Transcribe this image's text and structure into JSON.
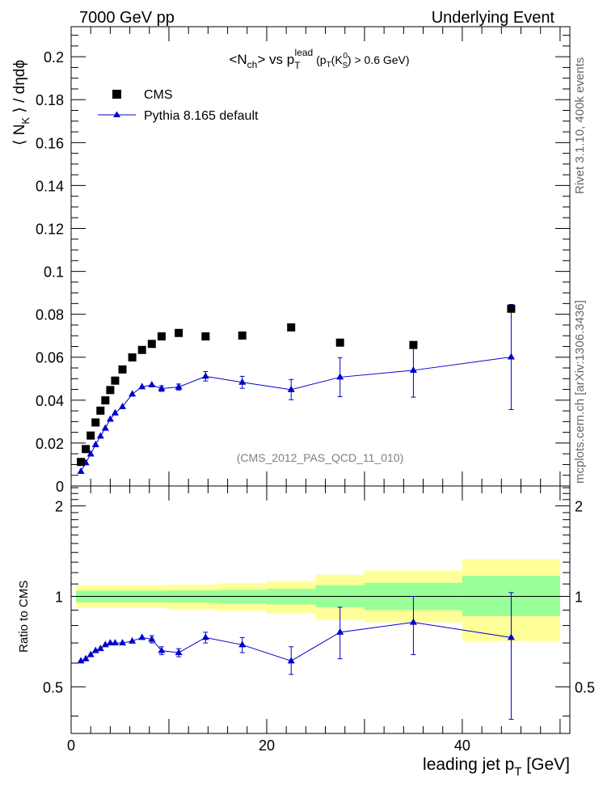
{
  "header": {
    "left": "7000 GeV pp",
    "right": "Underlying Event"
  },
  "side_labels": {
    "rivet": "Rivet 3.1.10,  400k events",
    "mcplots": "mcplots.cern.ch [arXiv:1306.3436]"
  },
  "watermark": "(CMS_2012_PAS_QCD_11_010)",
  "colors": {
    "cms": "#000000",
    "pythia": "#0000cc",
    "band_outer": "#ffff99",
    "band_inner": "#99ff99"
  },
  "chart_data": [
    {
      "type": "scatter",
      "title_parts": {
        "n": "<N",
        "n_sub": "ch",
        "mid": "> vs p",
        "pt_sub": "T",
        "pt_sup": "lead",
        "rest1": " (p",
        "rest1_sub": "T",
        "rest2": "(K",
        "k_sub": "S",
        "k_sup": "0",
        "rest3": ") > 0.6 GeV)"
      },
      "ylabel_parts": {
        "a": "⟨ N",
        "sub": "K",
        "b": " ⟩ / dηdϕ"
      },
      "xlim": [
        0,
        51
      ],
      "ylim": [
        0,
        0.214
      ],
      "yticks": [
        0,
        0.02,
        0.04,
        0.06,
        0.08,
        0.1,
        0.12,
        0.14,
        0.16,
        0.18,
        0.2
      ],
      "ytick_labels": [
        "0",
        "0.02",
        "0.04",
        "0.06",
        "0.08",
        "0.1",
        "0.12",
        "0.14",
        "0.16",
        "0.18",
        "0.2"
      ],
      "legend": [
        "CMS",
        "Pythia 8.165 default"
      ],
      "legend_position": "top-left",
      "series": [
        {
          "name": "CMS",
          "marker": "square",
          "x": [
            1.0,
            1.5,
            2.0,
            2.5,
            3.0,
            3.5,
            4.0,
            4.5,
            5.25,
            6.25,
            7.25,
            8.25,
            9.25,
            11.0,
            13.75,
            17.5,
            22.5,
            27.5,
            35.0,
            45.0
          ],
          "y": [
            0.0112,
            0.0172,
            0.0235,
            0.0296,
            0.0351,
            0.0399,
            0.0447,
            0.0491,
            0.0543,
            0.0599,
            0.0634,
            0.0662,
            0.0697,
            0.0713,
            0.0697,
            0.0701,
            0.0739,
            0.0668,
            0.0657,
            0.0826
          ]
        },
        {
          "name": "Pythia 8.165 default",
          "marker": "triangle",
          "x": [
            1.0,
            1.5,
            2.0,
            2.5,
            3.0,
            3.5,
            4.0,
            4.5,
            5.25,
            6.25,
            7.25,
            8.25,
            9.25,
            11.0,
            13.75,
            17.5,
            22.5,
            27.5,
            35.0,
            45.0
          ],
          "y": [
            0.0068,
            0.0108,
            0.0149,
            0.0192,
            0.0232,
            0.0269,
            0.0311,
            0.034,
            0.0369,
            0.0428,
            0.0462,
            0.0471,
            0.0454,
            0.0461,
            0.0511,
            0.0483,
            0.0449,
            0.0507,
            0.0539,
            0.0601
          ],
          "yerr": [
            0.0003,
            0.0003,
            0.0003,
            0.0003,
            0.0003,
            0.0003,
            0.0004,
            0.0004,
            0.0005,
            0.0006,
            0.0007,
            0.0009,
            0.0013,
            0.0014,
            0.0022,
            0.0028,
            0.0047,
            0.0091,
            0.0125,
            0.0245
          ]
        }
      ]
    },
    {
      "type": "scatter",
      "ylabel": "Ratio to CMS",
      "xlabel_parts": {
        "a": "leading jet p",
        "sub": "T",
        "b": " [GeV]"
      },
      "xlim": [
        0,
        51
      ],
      "ylim": [
        0.35,
        2.33
      ],
      "log_y": true,
      "xticks": [
        0,
        20,
        40
      ],
      "xtick_labels": [
        "0",
        "20",
        "40"
      ],
      "yticks": [
        0.5,
        1,
        2
      ],
      "ytick_labels": [
        "0.5",
        "1",
        "2"
      ],
      "bands": {
        "edges": [
          0.5,
          5,
          10,
          15,
          20,
          25,
          30,
          40,
          50
        ],
        "inner_low": [
          0.955,
          0.955,
          0.953,
          0.948,
          0.94,
          0.92,
          0.9,
          0.86
        ],
        "inner_high": [
          1.045,
          1.045,
          1.047,
          1.052,
          1.06,
          1.09,
          1.11,
          1.17
        ],
        "outer_low": [
          0.915,
          0.915,
          0.905,
          0.895,
          0.875,
          0.835,
          0.82,
          0.71
        ],
        "outer_high": [
          1.09,
          1.09,
          1.095,
          1.105,
          1.125,
          1.18,
          1.22,
          1.33
        ]
      },
      "series": [
        {
          "name": "Pythia 8.165 default",
          "x": [
            1.0,
            1.5,
            2.0,
            2.5,
            3.0,
            3.5,
            4.0,
            4.5,
            5.25,
            6.25,
            7.25,
            8.25,
            9.25,
            11.0,
            13.75,
            17.5,
            22.5,
            27.5,
            35.0,
            45.0
          ],
          "y": [
            0.61,
            0.62,
            0.64,
            0.66,
            0.67,
            0.69,
            0.7,
            0.7,
            0.7,
            0.71,
            0.73,
            0.72,
            0.66,
            0.65,
            0.73,
            0.69,
            0.61,
            0.76,
            0.82,
            0.73
          ],
          "yerr_low": [
            0.01,
            0.01,
            0.01,
            0.01,
            0.01,
            0.01,
            0.01,
            0.01,
            0.01,
            0.01,
            0.01,
            0.02,
            0.02,
            0.02,
            0.03,
            0.04,
            0.06,
            0.14,
            0.18,
            0.34
          ],
          "yerr_high": [
            0.01,
            0.01,
            0.01,
            0.01,
            0.01,
            0.01,
            0.01,
            0.01,
            0.01,
            0.01,
            0.01,
            0.02,
            0.02,
            0.02,
            0.03,
            0.04,
            0.07,
            0.16,
            0.18,
            0.3
          ]
        }
      ]
    }
  ]
}
